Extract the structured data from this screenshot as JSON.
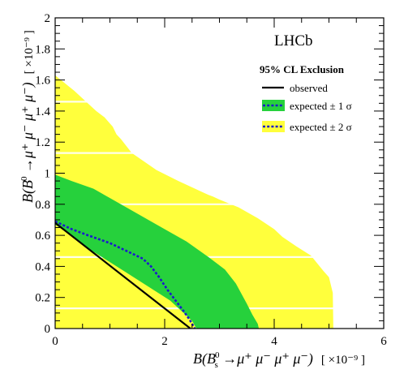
{
  "chart_data": {
    "type": "area",
    "experiment_label": "LHCb",
    "xlabel": {
      "prefix": "B(B",
      "sub": "s",
      "sup": "0",
      "decay": " →μ⁺ μ⁻ μ⁺ μ⁻)",
      "unit": "[ ×10⁻⁹ ]"
    },
    "ylabel": {
      "prefix": "B(B",
      "sup": "0",
      "decay": " →μ⁺ μ⁻ μ⁺ μ⁻)",
      "unit": "[ ×10⁻⁹ ]"
    },
    "xlim": [
      0,
      6
    ],
    "ylim": [
      0,
      2
    ],
    "xticks": [
      "0",
      "2",
      "4",
      "6"
    ],
    "yticks": [
      "0",
      "0.2",
      "0.4",
      "0.6",
      "0.8",
      "1",
      "1.2",
      "1.4",
      "1.6",
      "1.8",
      "2"
    ],
    "legend": {
      "title": "95% CL Exclusion",
      "placement": "top-right",
      "entries": [
        "observed",
        "expected ± 1 σ",
        "expected ± 2 σ"
      ]
    },
    "colors": {
      "band_2sigma": "#ffff3c",
      "band_1sigma": "#26d13c",
      "expected": "#1a1acc",
      "observed": "#000000"
    },
    "series": [
      {
        "name": "expected ± 2 σ",
        "upper_x": [
          0,
          0.35,
          0.75,
          0.9,
          1.0,
          1.05,
          1.12,
          1.2,
          1.4,
          1.85,
          2.25,
          2.8,
          2.88,
          3.0,
          3.35,
          3.7,
          4.0,
          4.15,
          4.4,
          4.67,
          4.9,
          5.0,
          5.07,
          5.08
        ],
        "upper_y": [
          1.63,
          1.53,
          1.4,
          1.36,
          1.32,
          1.3,
          1.25,
          1.22,
          1.13,
          1.02,
          0.95,
          0.86,
          0.85,
          0.83,
          0.78,
          0.71,
          0.64,
          0.59,
          0.53,
          0.47,
          0.37,
          0.33,
          0.23,
          0
        ]
      },
      {
        "name": "expected ± 1 σ",
        "upper_x": [
          0,
          0.3,
          0.7,
          1.0,
          1.3,
          1.7,
          2.0,
          2.4,
          2.8,
          3.1,
          3.3,
          3.5,
          3.6,
          3.7,
          3.72
        ],
        "upper_y": [
          0.99,
          0.95,
          0.9,
          0.84,
          0.78,
          0.7,
          0.64,
          0.56,
          0.46,
          0.38,
          0.29,
          0.16,
          0.09,
          0.03,
          0
        ],
        "lower_x": [
          0,
          0.2,
          0.5,
          0.9,
          1.3,
          1.7,
          2.1,
          2.5,
          2.58
        ],
        "lower_y": [
          0.67,
          0.62,
          0.54,
          0.45,
          0.36,
          0.27,
          0.18,
          0.05,
          0
        ]
      },
      {
        "name": "expected",
        "x": [
          0,
          0.3,
          0.6,
          1.0,
          1.3,
          1.6,
          1.75,
          1.9,
          2.05,
          2.2,
          2.35,
          2.45,
          2.55
        ],
        "y": [
          0.69,
          0.64,
          0.6,
          0.55,
          0.5,
          0.45,
          0.4,
          0.33,
          0.25,
          0.18,
          0.11,
          0.06,
          0
        ]
      },
      {
        "name": "observed",
        "x": [
          0,
          2.47
        ],
        "y": [
          0.68,
          0
        ]
      }
    ]
  }
}
